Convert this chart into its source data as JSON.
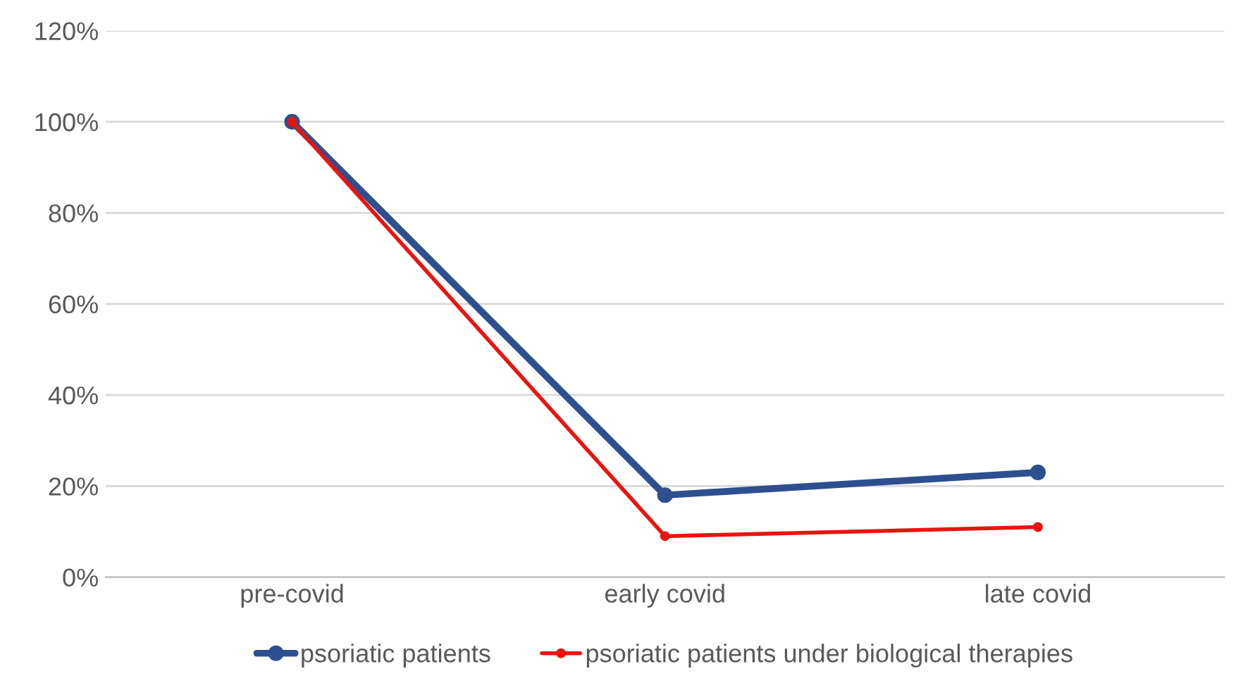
{
  "chart_data": {
    "type": "line",
    "categories": [
      "pre-covid",
      "early covid",
      "late covid"
    ],
    "series": [
      {
        "name": "psoriatic patients",
        "color": "#2e4f8f",
        "values": [
          100,
          18,
          23
        ]
      },
      {
        "name": "psoriatic patients under biological therapies",
        "color": "#e8150f",
        "values": [
          100,
          9,
          11
        ]
      }
    ],
    "ylim": [
      0,
      120
    ],
    "yticks": [
      {
        "value": 0,
        "label": "0%"
      },
      {
        "value": 20,
        "label": "20%"
      },
      {
        "value": 40,
        "label": "40%"
      },
      {
        "value": 60,
        "label": "60%"
      },
      {
        "value": 80,
        "label": "80%"
      },
      {
        "value": 100,
        "label": "100%"
      },
      {
        "value": 120,
        "label": "120%"
      }
    ],
    "grid": "y",
    "legend": "bottom",
    "marker": "circle",
    "line_style": "solid"
  }
}
